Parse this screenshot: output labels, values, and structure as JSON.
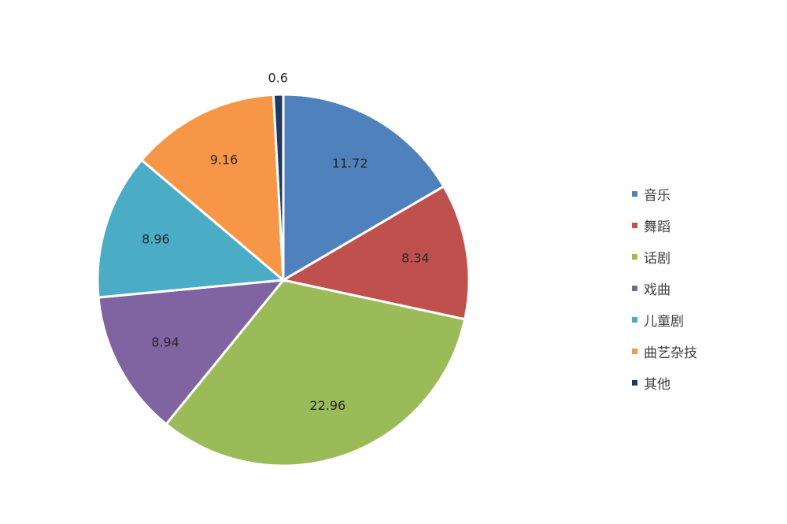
{
  "chart_data": {
    "type": "pie",
    "categories": [
      "音乐",
      "舞蹈",
      "话剧",
      "戏曲",
      "儿童剧",
      "曲艺杂技",
      "其他"
    ],
    "values": [
      11.72,
      8.34,
      22.96,
      8.94,
      8.96,
      9.16,
      0.6
    ],
    "data_labels": [
      "11.72",
      "8.34",
      "22.96",
      "8.94",
      "8.96",
      "9.16",
      "0.6"
    ],
    "colors": [
      "#4f81bd",
      "#c0504d",
      "#9bbb59",
      "#8064a2",
      "#4bacc6",
      "#f79646",
      "#1f3864"
    ],
    "start_angle": "12 o'clock",
    "direction": "clockwise",
    "legend_position": "right"
  }
}
